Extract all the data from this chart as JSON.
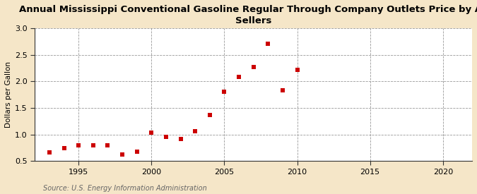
{
  "title": "Annual Mississippi Conventional Gasoline Regular Through Company Outlets Price by All\nSellers",
  "ylabel": "Dollars per Gallon",
  "source": "Source: U.S. Energy Information Administration",
  "background_color": "#f5e6c8",
  "plot_background_color": "#ffffff",
  "data_color": "#cc0000",
  "years": [
    1993,
    1994,
    1995,
    1996,
    1997,
    1998,
    1999,
    2000,
    2001,
    2002,
    2003,
    2004,
    2005,
    2006,
    2007,
    2008,
    2009,
    2010
  ],
  "values": [
    0.67,
    0.74,
    0.8,
    0.8,
    0.8,
    0.63,
    0.68,
    1.03,
    0.95,
    0.91,
    1.06,
    1.37,
    1.8,
    2.08,
    2.27,
    2.71,
    1.83,
    2.22
  ],
  "xlim": [
    1992,
    2022
  ],
  "ylim": [
    0.5,
    3.0
  ],
  "xticks": [
    1995,
    2000,
    2005,
    2010,
    2015,
    2020
  ],
  "yticks": [
    0.5,
    1.0,
    1.5,
    2.0,
    2.5,
    3.0
  ],
  "marker_size": 20,
  "title_fontsize": 9.5,
  "label_fontsize": 7.5,
  "tick_fontsize": 8,
  "source_fontsize": 7
}
